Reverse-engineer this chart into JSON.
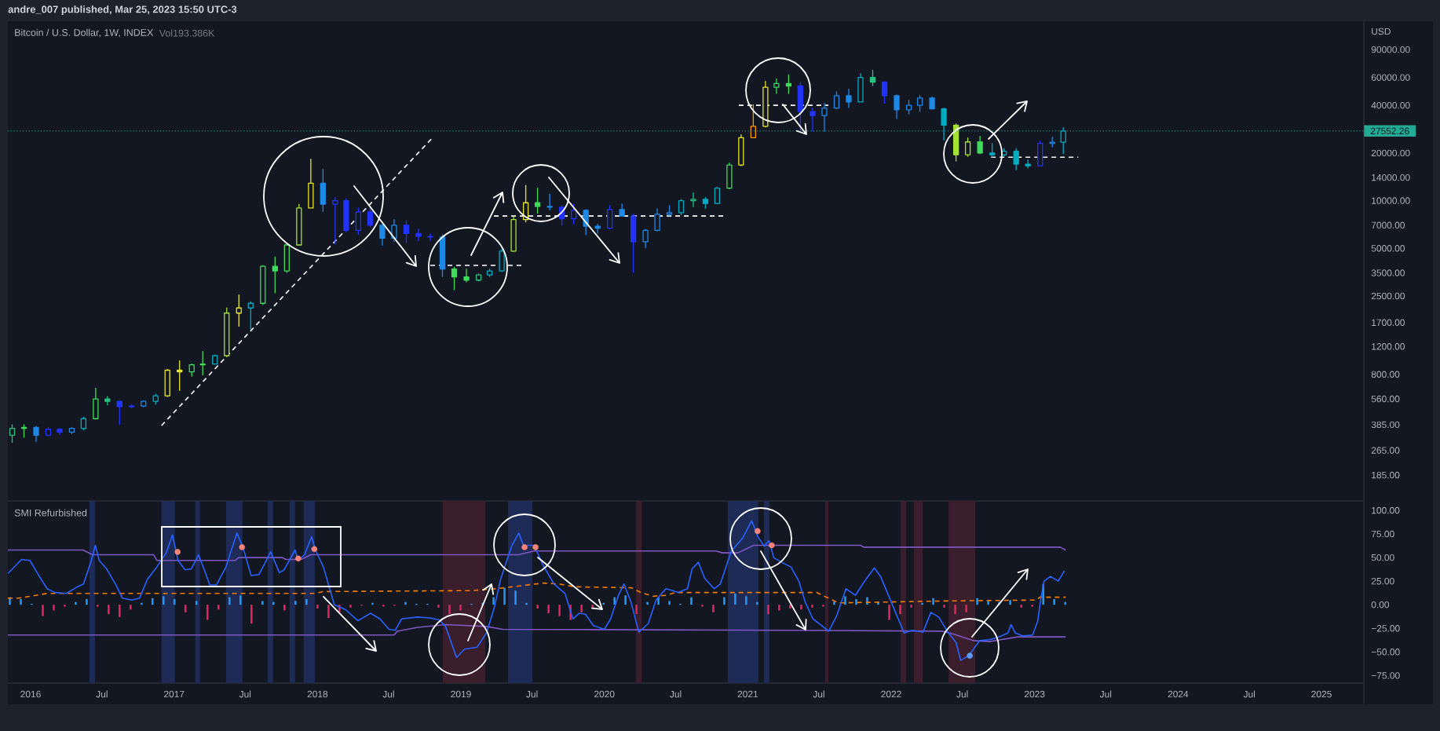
{
  "chart_data": [
    {
      "type": "candlestick",
      "title": "Bitcoin / U.S. Dollar, 1W, INDEX",
      "ylabel": "USD",
      "annotations": [
        "andre_007 published, Mar 25, 2023 15:50 UTC-3",
        "Vol193.386K"
      ],
      "x": [
        "2015-11-15",
        "2015-12-15",
        "2016-01-15",
        "2016-02-15",
        "2016-03-15",
        "2016-04-15",
        "2016-05-15",
        "2016-06-15",
        "2016-07-15",
        "2016-08-15",
        "2016-09-15",
        "2016-10-15",
        "2016-11-15",
        "2016-12-15",
        "2017-01-15",
        "2017-02-15",
        "2017-03-15",
        "2017-04-15",
        "2017-05-15",
        "2017-06-15",
        "2017-07-15",
        "2017-08-15",
        "2017-09-15",
        "2017-10-15",
        "2017-11-15",
        "2017-12-15",
        "2018-01-15",
        "2018-02-15",
        "2018-03-15",
        "2018-04-15",
        "2018-05-15",
        "2018-06-15",
        "2018-07-15",
        "2018-08-15",
        "2018-09-15",
        "2018-10-15",
        "2018-11-15",
        "2018-12-15",
        "2019-01-15",
        "2019-02-15",
        "2019-03-15",
        "2019-04-15",
        "2019-05-15",
        "2019-06-15",
        "2019-07-15",
        "2019-08-15",
        "2019-09-15",
        "2019-10-15",
        "2019-11-15",
        "2019-12-15",
        "2020-01-15",
        "2020-02-15",
        "2020-03-15",
        "2020-04-15",
        "2020-05-15",
        "2020-06-15",
        "2020-07-15",
        "2020-08-15",
        "2020-09-15",
        "2020-10-15",
        "2020-11-15",
        "2020-12-15",
        "2021-01-15",
        "2021-02-15",
        "2021-03-15",
        "2021-04-15",
        "2021-05-15",
        "2021-06-15",
        "2021-07-15",
        "2021-08-15",
        "2021-09-15",
        "2021-10-15",
        "2021-11-15",
        "2021-12-15",
        "2022-01-15",
        "2022-02-15",
        "2022-03-15",
        "2022-04-15",
        "2022-05-15",
        "2022-06-15",
        "2022-07-15",
        "2022-08-15",
        "2022-09-15",
        "2022-10-15",
        "2022-11-15",
        "2022-12-15",
        "2023-01-15",
        "2023-02-15",
        "2023-03-15"
      ],
      "ohlc": [
        [
          330,
          385,
          296,
          365
        ],
        [
          365,
          385,
          318,
          370
        ],
        [
          370,
          375,
          300,
          330
        ],
        [
          330,
          370,
          325,
          360
        ],
        [
          360,
          365,
          330,
          345
        ],
        [
          345,
          370,
          335,
          365
        ],
        [
          365,
          430,
          355,
          420
        ],
        [
          420,
          655,
          415,
          560
        ],
        [
          560,
          580,
          510,
          540
        ],
        [
          540,
          545,
          385,
          500
        ],
        [
          500,
          515,
          490,
          505
        ],
        [
          505,
          545,
          495,
          540
        ],
        [
          540,
          600,
          515,
          585
        ],
        [
          585,
          860,
          575,
          850
        ],
        [
          850,
          975,
          630,
          830
        ],
        [
          830,
          930,
          775,
          920
        ],
        [
          920,
          1115,
          790,
          930
        ],
        [
          930,
          1060,
          920,
          1050
        ],
        [
          1050,
          2100,
          1030,
          1950
        ],
        [
          1950,
          2540,
          1600,
          2100
        ],
        [
          2100,
          2300,
          1540,
          2250
        ],
        [
          2250,
          3900,
          2200,
          3850
        ],
        [
          3850,
          4400,
          2600,
          3600
        ],
        [
          3600,
          5300,
          3500,
          5250
        ],
        [
          5250,
          9500,
          5200,
          9000
        ],
        [
          9000,
          18300,
          9000,
          12900
        ],
        [
          12900,
          15800,
          8500,
          9500
        ],
        [
          9500,
          10500,
          5300,
          10000
        ],
        [
          10000,
          10300,
          6300,
          6500
        ],
        [
          6500,
          9000,
          6100,
          8500
        ],
        [
          8500,
          9100,
          6800,
          7000
        ],
        [
          7000,
          7100,
          5200,
          5800
        ],
        [
          5800,
          7600,
          5500,
          7000
        ],
        [
          7000,
          7500,
          5400,
          6200
        ],
        [
          6200,
          6600,
          5550,
          5950
        ],
        [
          5950,
          6200,
          5550,
          5900
        ],
        [
          5900,
          6100,
          3300,
          3700
        ],
        [
          3700,
          3800,
          2720,
          3300
        ],
        [
          3300,
          3700,
          3050,
          3150
        ],
        [
          3150,
          3450,
          3100,
          3400
        ],
        [
          3400,
          3700,
          3300,
          3600
        ],
        [
          3600,
          4950,
          3550,
          4800
        ],
        [
          4800,
          7950,
          4750,
          7600
        ],
        [
          7600,
          12500,
          7300,
          9700
        ],
        [
          9700,
          12000,
          8300,
          9200
        ],
        [
          9200,
          11000,
          8700,
          9100
        ],
        [
          9100,
          9300,
          6950,
          7700
        ],
        [
          7700,
          9500,
          7100,
          8700
        ],
        [
          8700,
          8800,
          6050,
          6900
        ],
        [
          6900,
          7100,
          6200,
          6700
        ],
        [
          6700,
          9300,
          6600,
          8800
        ],
        [
          8800,
          9550,
          7950,
          8000
        ],
        [
          8000,
          8200,
          3500,
          5500
        ],
        [
          5500,
          6600,
          5000,
          6500
        ],
        [
          6500,
          8900,
          6400,
          8200
        ],
        [
          8200,
          9300,
          8000,
          8400
        ],
        [
          8400,
          10200,
          8100,
          10000
        ],
        [
          10000,
          11200,
          9100,
          10200
        ],
        [
          10200,
          10500,
          8900,
          9600
        ],
        [
          9600,
          12200,
          9500,
          12000
        ],
        [
          12000,
          17300,
          11800,
          16800
        ],
        [
          16800,
          26100,
          16500,
          25000
        ],
        [
          25000,
          40300,
          25000,
          29500
        ],
        [
          29500,
          56700,
          29000,
          52000
        ],
        [
          52000,
          58900,
          47300,
          55000
        ],
        [
          55000,
          62200,
          47300,
          53000
        ],
        [
          53000,
          56000,
          27300,
          36500
        ],
        [
          36500,
          38500,
          27300,
          34500
        ],
        [
          34500,
          41200,
          27300,
          38500
        ],
        [
          38500,
          48700,
          38000,
          46000
        ],
        [
          46000,
          50600,
          38500,
          42000
        ],
        [
          42000,
          63500,
          42000,
          60000
        ],
        [
          60000,
          66600,
          53000,
          56000
        ],
        [
          56000,
          56500,
          41000,
          46000
        ],
        [
          46000,
          46500,
          32800,
          37500
        ],
        [
          37500,
          43000,
          35000,
          40000
        ],
        [
          40000,
          46200,
          36500,
          44500
        ],
        [
          44500,
          45200,
          37600,
          38000
        ],
        [
          38000,
          38500,
          24000,
          30000
        ],
        [
          30000,
          30500,
          17700,
          19500
        ],
        [
          19500,
          24900,
          18900,
          23500
        ],
        [
          23500,
          25500,
          19700,
          20000
        ],
        [
          20000,
          23000,
          18700,
          19500
        ],
        [
          19500,
          21300,
          19000,
          20500
        ],
        [
          20500,
          21300,
          15600,
          17000
        ],
        [
          17000,
          18100,
          16000,
          16600
        ],
        [
          16600,
          23800,
          16500,
          23000
        ],
        [
          23000,
          25200,
          21700,
          23400
        ],
        [
          23400,
          28900,
          19700,
          27552.26
        ]
      ],
      "colors": [
        "#26c281",
        "#3ddc5a",
        "#1e88e5",
        "#2233ff",
        "#2233ff",
        "#1e88e5",
        "#00acc1",
        "#3ddc5a",
        "#26c281",
        "#2233ff",
        "#2233ff",
        "#1e88e5",
        "#00acc1",
        "#e5e52a",
        "#e5e52a",
        "#3ddc5a",
        "#3ddc5a",
        "#00acc1",
        "#a5e034",
        "#e5e52a",
        "#00acc1",
        "#3ddc5a",
        "#3ddc5a",
        "#3ddc5a",
        "#a5e034",
        "#e5e52a",
        "#1e88e5",
        "#2233ff",
        "#2233ff",
        "#2233ff",
        "#2233ff",
        "#1e88e5",
        "#1e88e5",
        "#2233ff",
        "#2233ff",
        "#2233ff",
        "#1e88e5",
        "#3ddc5a",
        "#3ddc5a",
        "#26c281",
        "#00acc1",
        "#00acc1",
        "#a5e034",
        "#e5e52a",
        "#3ddc5a",
        "#1e88e5",
        "#2233ff",
        "#2233ff",
        "#1e88e5",
        "#1e88e5",
        "#2233ff",
        "#1e88e5",
        "#2233ff",
        "#1e88e5",
        "#1e88e5",
        "#1e88e5",
        "#00acc1",
        "#26c281",
        "#00acc1",
        "#00acc1",
        "#3ddc5a",
        "#e5e52a",
        "#ff9800",
        "#e5e52a",
        "#3ddc5a",
        "#3ddc5a",
        "#2233ff",
        "#2233ff",
        "#1e88e5",
        "#1e88e5",
        "#1e88e5",
        "#00acc1",
        "#26c281",
        "#2233ff",
        "#1e88e5",
        "#1e88e5",
        "#1e88e5",
        "#1e88e5",
        "#00acc1",
        "#a5e034",
        "#a5e034",
        "#3ddc5a",
        "#00acc1",
        "#00acc1",
        "#00acc1",
        "#00acc1",
        "#2233ff",
        "#1e88e5",
        "#00acc1"
      ],
      "log": true,
      "xlim": [
        "2015-11-04",
        "2025-04-19"
      ],
      "ylim": [
        127,
        136000
      ],
      "yticks": [
        {
          "value": 185,
          "label": "185.00"
        },
        {
          "value": 265,
          "label": "265.00"
        },
        {
          "value": 385,
          "label": "385.00"
        },
        {
          "value": 560,
          "label": "560.00"
        },
        {
          "value": 800,
          "label": "800.00"
        },
        {
          "value": 1200,
          "label": "1200.00"
        },
        {
          "value": 1700,
          "label": "1700.00"
        },
        {
          "value": 2500,
          "label": "2500.00"
        },
        {
          "value": 3500,
          "label": "3500.00"
        },
        {
          "value": 5000,
          "label": "5000.00"
        },
        {
          "value": 7000,
          "label": "7000.00"
        },
        {
          "value": 10000,
          "label": "10000.00"
        },
        {
          "value": 14000,
          "label": "14000.00"
        },
        {
          "value": 20000,
          "label": "20000.00"
        },
        {
          "value": 40000,
          "label": "40000.00"
        },
        {
          "value": 60000,
          "label": "60000.00"
        },
        {
          "value": 90000,
          "label": "90000.00"
        }
      ],
      "tick_labels": "y",
      "ref_lines": [
        {
          "axis": "y",
          "value": 27552.26,
          "label": "27552.26",
          "color": "#22ab94",
          "line_style": "dotted"
        }
      ],
      "series": [
        {
          "type": "line",
          "x": [
            "2016-11-30",
            "2018-10-21"
          ],
          "values": [
            380,
            25000
          ],
          "color": "#ffffff",
          "line_style": "dashed"
        },
        {
          "type": "line",
          "x": [
            "2018-10-15",
            "2019-06-12"
          ],
          "values": [
            3900,
            3900
          ],
          "color": "#ffffff",
          "line_style": "dashed"
        },
        {
          "type": "line",
          "x": [
            "2019-03-26",
            "2020-11-03"
          ],
          "values": [
            8000,
            8000
          ],
          "color": "#ffffff",
          "line_style": "dashed"
        },
        {
          "type": "line",
          "x": [
            "2020-12-09",
            "2021-07-25"
          ],
          "values": [
            40000,
            40000
          ],
          "color": "#ffffff",
          "line_style": "dashed"
        },
        {
          "type": "line",
          "x": [
            "2022-09-12",
            "2023-04-22"
          ],
          "values": [
            18800,
            18800
          ],
          "color": "#ffffff",
          "line_style": "dashed"
        }
      ]
    },
    {
      "type": "line",
      "title": "SMI Refurbished",
      "xlim": [
        "2015-11-04",
        "2025-04-19"
      ],
      "xticks": [
        "2016",
        {
          "value": "2016-07-01",
          "label": "Jul"
        },
        "2017",
        {
          "value": "2017-07-01",
          "label": "Jul"
        },
        "2018",
        {
          "value": "2018-07-01",
          "label": "Jul"
        },
        "2019",
        {
          "value": "2019-07-01",
          "label": "Jul"
        },
        "2020",
        {
          "value": "2020-07-01",
          "label": "Jul"
        },
        "2021",
        {
          "value": "2021-07-01",
          "label": "Jul"
        },
        "2022",
        {
          "value": "2022-07-01",
          "label": "Jul"
        },
        "2023",
        {
          "value": "2023-07-01",
          "label": "Jul"
        },
        "2024",
        {
          "value": "2024-07-01",
          "label": "Jul"
        },
        "2025"
      ],
      "ylim": [
        -83,
        110
      ],
      "yticks": [
        {
          "value": -75,
          "label": "−75.00"
        },
        {
          "value": -50,
          "label": "−50.00"
        },
        {
          "value": -25,
          "label": "−25.00"
        },
        {
          "value": 0,
          "label": "0.00"
        },
        {
          "value": 25,
          "label": "25.00"
        },
        {
          "value": 50,
          "label": "50.00"
        },
        {
          "value": 75,
          "label": "75.00"
        },
        {
          "value": 100,
          "label": "100.00"
        }
      ],
      "bands": [
        {
          "axis": "x",
          "from": "2016-05-30",
          "to": "2016-06-13",
          "color": "#1e2b57"
        },
        {
          "axis": "x",
          "from": "2016-11-30",
          "to": "2017-01-03",
          "color": "#1e2b57"
        },
        {
          "axis": "x",
          "from": "2017-02-24",
          "to": "2017-03-08",
          "color": "#1e2b57"
        },
        {
          "axis": "x",
          "from": "2017-05-13",
          "to": "2017-06-24",
          "color": "#1e2b57"
        },
        {
          "axis": "x",
          "from": "2017-08-27",
          "to": "2017-09-10",
          "color": "#1e2b57"
        },
        {
          "axis": "x",
          "from": "2017-10-22",
          "to": "2017-11-05",
          "color": "#1e2b57"
        },
        {
          "axis": "x",
          "from": "2017-11-27",
          "to": "2017-12-25",
          "color": "#1e2b57"
        },
        {
          "axis": "x",
          "from": "2018-11-16",
          "to": "2019-03-04",
          "color": "#3b1e2b"
        },
        {
          "axis": "x",
          "from": "2019-05-01",
          "to": "2019-07-02",
          "color": "#1e2b57"
        },
        {
          "axis": "x",
          "from": "2020-03-22",
          "to": "2020-04-05",
          "color": "#3b1e2b"
        },
        {
          "axis": "x",
          "from": "2020-11-11",
          "to": "2021-01-28",
          "color": "#1e2b57"
        },
        {
          "axis": "x",
          "from": "2021-02-11",
          "to": "2021-02-25",
          "color": "#1e2b57"
        },
        {
          "axis": "x",
          "from": "2021-07-17",
          "to": "2021-07-25",
          "color": "#3b1e2b"
        },
        {
          "axis": "x",
          "from": "2022-01-25",
          "to": "2022-02-08",
          "color": "#3b1e2b"
        },
        {
          "axis": "x",
          "from": "2022-02-28",
          "to": "2022-03-22",
          "color": "#3b1e2b"
        },
        {
          "axis": "x",
          "from": "2022-05-27",
          "to": "2022-08-03",
          "color": "#3b1e2b"
        }
      ],
      "series": [
        {
          "type": "bar",
          "x": [
            "2015-11-09",
            "2015-12-07",
            "2016-01-04",
            "2016-02-01",
            "2016-02-29",
            "2016-03-28",
            "2016-04-25",
            "2016-05-23",
            "2016-06-20",
            "2016-07-18",
            "2016-08-15",
            "2016-09-12",
            "2016-10-10",
            "2016-11-07",
            "2016-12-05",
            "2017-01-02",
            "2017-01-30",
            "2017-02-27",
            "2017-03-27",
            "2017-04-24",
            "2017-05-22",
            "2017-06-19",
            "2017-07-17",
            "2017-08-14",
            "2017-09-11",
            "2017-10-09",
            "2017-11-06",
            "2017-12-04",
            "2018-01-01",
            "2018-01-29",
            "2018-02-26",
            "2018-03-26",
            "2018-04-23",
            "2018-05-21",
            "2018-06-18",
            "2018-07-16",
            "2018-08-13",
            "2018-09-10",
            "2018-10-08",
            "2018-11-05",
            "2018-12-03",
            "2018-12-31",
            "2019-01-28",
            "2019-02-25",
            "2019-03-25",
            "2019-04-22",
            "2019-05-20",
            "2019-06-17",
            "2019-07-15",
            "2019-08-12",
            "2019-09-09",
            "2019-10-07",
            "2019-11-04",
            "2019-12-02",
            "2019-12-30",
            "2020-01-27",
            "2020-02-24",
            "2020-03-23",
            "2020-04-20",
            "2020-05-18",
            "2020-06-15",
            "2020-07-13",
            "2020-08-10",
            "2020-09-07",
            "2020-10-05",
            "2020-11-02",
            "2020-11-30",
            "2020-12-28",
            "2021-01-25",
            "2021-02-22",
            "2021-03-22",
            "2021-04-19",
            "2021-05-17",
            "2021-06-14",
            "2021-07-12",
            "2021-08-09",
            "2021-09-06",
            "2021-10-04",
            "2021-11-01",
            "2021-11-29",
            "2021-12-27",
            "2022-01-24",
            "2022-02-21",
            "2022-03-21",
            "2022-04-18",
            "2022-05-16",
            "2022-06-13",
            "2022-07-11",
            "2022-08-08",
            "2022-09-05",
            "2022-10-03",
            "2022-10-31",
            "2022-11-28",
            "2022-12-26",
            "2023-01-23",
            "2023-02-20",
            "2023-03-20"
          ],
          "values": [
            8,
            6,
            1,
            -12,
            -6,
            -2,
            3,
            6,
            -2,
            -10,
            -13,
            -5,
            2,
            7,
            9,
            6,
            -8,
            4,
            -16,
            -5,
            8,
            10,
            -20,
            4,
            3,
            -6,
            4,
            6,
            -4,
            -14,
            -8,
            -3,
            -1,
            2,
            -2,
            -1,
            3,
            1,
            1,
            -3,
            -10,
            -6,
            1,
            2,
            8,
            18,
            15,
            2,
            -4,
            -9,
            -12,
            -16,
            -8,
            -4,
            2,
            8,
            10,
            -10,
            3,
            8,
            4,
            1,
            8,
            -2,
            -8,
            8,
            12,
            9,
            3,
            -10,
            -6,
            -4,
            -5,
            -3,
            -2,
            4,
            9,
            6,
            8,
            3,
            -16,
            -10,
            -3,
            2,
            7,
            -3,
            -10,
            -8,
            7,
            4,
            3,
            5,
            -3,
            -2,
            22,
            6,
            3
          ],
          "colors": [
            "#2196f3",
            "#2196f3",
            "#2196f3",
            "#e0245e",
            "#e0245e",
            "#e0245e",
            "#2196f3",
            "#2196f3",
            "#e0245e",
            "#e0245e",
            "#e0245e",
            "#e0245e",
            "#2196f3",
            "#2196f3",
            "#2196f3",
            "#2196f3",
            "#e0245e",
            "#2196f3",
            "#e0245e",
            "#e0245e",
            "#2196f3",
            "#2196f3",
            "#e0245e",
            "#2196f3",
            "#2196f3",
            "#e0245e",
            "#2196f3",
            "#2196f3",
            "#e0245e",
            "#e0245e",
            "#e0245e",
            "#e0245e",
            "#e0245e",
            "#2196f3",
            "#e0245e",
            "#e0245e",
            "#2196f3",
            "#2196f3",
            "#2196f3",
            "#e0245e",
            "#e0245e",
            "#e0245e",
            "#2196f3",
            "#2196f3",
            "#2196f3",
            "#2196f3",
            "#2196f3",
            "#2196f3",
            "#e0245e",
            "#e0245e",
            "#e0245e",
            "#e0245e",
            "#e0245e",
            "#e0245e",
            "#2196f3",
            "#2196f3",
            "#2196f3",
            "#e0245e",
            "#2196f3",
            "#2196f3",
            "#2196f3",
            "#2196f3",
            "#2196f3",
            "#e0245e",
            "#e0245e",
            "#2196f3",
            "#2196f3",
            "#2196f3",
            "#2196f3",
            "#e0245e",
            "#e0245e",
            "#e0245e",
            "#e0245e",
            "#e0245e",
            "#e0245e",
            "#2196f3",
            "#2196f3",
            "#2196f3",
            "#2196f3",
            "#2196f3",
            "#e0245e",
            "#e0245e",
            "#e0245e",
            "#2196f3",
            "#2196f3",
            "#e0245e",
            "#e0245e",
            "#e0245e",
            "#2196f3",
            "#2196f3",
            "#2196f3",
            "#2196f3",
            "#e0245e",
            "#e0245e",
            "#2196f3",
            "#2196f3",
            "#2196f3"
          ]
        },
        {
          "type": "line",
          "x": [
            "2015-11-04",
            "2016-05-14",
            "2016-06-07",
            "2016-11-10",
            "2016-11-18",
            "2017-06-06",
            "2017-06-14",
            "2017-10-04",
            "2017-10-12",
            "2017-11-21",
            "2017-12-15",
            "2019-05-27",
            "2019-07-06",
            "2020-10-12",
            "2020-10-28",
            "2020-12-07",
            "2021-01-16",
            "2021-10-15",
            "2021-10-23",
            "2023-03-07",
            "2023-03-21"
          ],
          "values": [
            58,
            58,
            53,
            53,
            47,
            47,
            50,
            50,
            48,
            48,
            53,
            53,
            57,
            57,
            55,
            55,
            63,
            63,
            61,
            61,
            58
          ],
          "color": "#7e57c2"
        },
        {
          "type": "line",
          "x": [
            "2015-11-04",
            "2018-07-15",
            "2018-07-23",
            "2018-09-13",
            "2018-11-24",
            "2019-03-08",
            "2019-04-17",
            "2021-04-06",
            "2022-05-11",
            "2022-05-31",
            "2022-07-30",
            "2022-09-08",
            "2022-11-19",
            "2023-03-21"
          ],
          "values": [
            -32,
            -32,
            -28,
            -24,
            -21,
            -23,
            -26,
            -27,
            -28,
            -30,
            -38,
            -39,
            -34,
            -34
          ],
          "color": "#7e57c2"
        },
        {
          "type": "line",
          "x": [
            "2015-11-04",
            "2015-12-02",
            "2016-02-12",
            "2017-12-23",
            "2018-01-16",
            "2019-01-27",
            "2019-04-01",
            "2019-07-30",
            "2019-09-08",
            "2019-10-18",
            "2020-03-10",
            "2020-04-03",
            "2020-05-05",
            "2020-06-06",
            "2020-06-30",
            "2021-06-25",
            "2021-08-20",
            "2022-05-11",
            "2023-01-06",
            "2023-01-14",
            "2023-03-21"
          ],
          "values": [
            7,
            7,
            12,
            12,
            14,
            15,
            17,
            23,
            22,
            19,
            18,
            13,
            9,
            10,
            13,
            13,
            2,
            4,
            5,
            8,
            8
          ],
          "color": "#f57c00",
          "line_style": "dashed"
        },
        {
          "type": "line",
          "x": [
            "2015-11-04",
            "2015-12-09",
            "2015-12-30",
            "2016-01-19",
            "2016-02-12",
            "2016-03-03",
            "2016-04-01",
            "2016-04-25",
            "2016-05-15",
            "2016-06-04",
            "2016-06-14",
            "2016-06-24",
            "2016-07-13",
            "2016-08-07",
            "2016-08-22",
            "2016-09-15",
            "2016-10-05",
            "2016-10-25",
            "2016-11-18",
            "2016-12-12",
            "2016-12-28",
            "2017-01-11",
            "2017-01-29",
            "2017-02-14",
            "2017-03-04",
            "2017-03-18",
            "2017-04-02",
            "2017-04-19",
            "2017-05-13",
            "2017-06-10",
            "2017-06-26",
            "2017-07-16",
            "2017-08-05",
            "2017-09-04",
            "2017-09-26",
            "2017-10-08",
            "2017-11-05",
            "2017-11-13",
            "2017-11-29",
            "2017-12-17",
            "2017-12-27",
            "2018-01-16",
            "2018-02-01",
            "2018-02-13",
            "2018-03-13",
            "2018-04-14",
            "2018-05-16",
            "2018-06-09",
            "2018-07-02",
            "2018-07-18",
            "2018-08-03",
            "2018-09-12",
            "2018-10-14",
            "2018-11-07",
            "2018-11-23",
            "2018-12-21",
            "2019-01-10",
            "2019-02-11",
            "2019-03-07",
            "2019-03-27",
            "2019-04-12",
            "2019-05-10",
            "2019-05-28",
            "2019-06-10",
            "2019-06-23",
            "2019-07-05",
            "2019-07-17",
            "2019-07-29",
            "2019-08-26",
            "2019-09-23",
            "2019-10-13",
            "2019-10-29",
            "2019-11-14",
            "2019-12-04",
            "2020-01-01",
            "2020-01-17",
            "2020-02-06",
            "2020-02-20",
            "2020-03-09",
            "2020-03-29",
            "2020-04-22",
            "2020-05-12",
            "2020-06-06",
            "2020-07-08",
            "2020-07-31",
            "2020-08-12",
            "2020-08-28",
            "2020-09-13",
            "2020-10-07",
            "2020-10-23",
            "2020-11-20",
            "2020-12-18",
            "2021-01-11",
            "2021-01-27",
            "2021-02-12",
            "2021-02-24",
            "2021-03-08",
            "2021-03-28",
            "2021-04-21",
            "2021-05-11",
            "2021-05-27",
            "2021-06-16",
            "2021-07-02",
            "2021-07-26",
            "2021-08-15",
            "2021-09-08",
            "2021-10-02",
            "2021-10-22",
            "2021-11-19",
            "2021-12-05",
            "2022-01-02",
            "2022-02-03",
            "2022-02-23",
            "2022-03-23",
            "2022-04-12",
            "2022-05-02",
            "2022-05-22",
            "2022-06-15",
            "2022-06-27",
            "2022-07-17",
            "2022-08-14",
            "2022-09-07",
            "2022-09-27",
            "2022-10-25",
            "2022-11-02",
            "2022-11-13",
            "2022-12-03",
            "2022-12-27",
            "2023-01-09",
            "2023-01-17",
            "2023-01-25",
            "2023-02-10",
            "2023-03-02",
            "2023-03-18"
          ],
          "values": [
            33,
            48,
            47,
            33,
            17,
            13,
            12,
            18,
            22,
            47,
            63,
            47,
            38,
            20,
            7,
            5,
            7,
            27,
            40,
            55,
            74,
            47,
            37,
            38,
            53,
            38,
            21,
            21,
            40,
            76,
            60,
            31,
            32,
            56,
            34,
            37,
            58,
            47,
            53,
            72,
            58,
            40,
            17,
            0,
            -5,
            -17,
            -9,
            -15,
            -26,
            -27,
            -15,
            -13,
            -14,
            -16,
            -23,
            -56,
            -47,
            -45,
            -30,
            -3,
            27,
            62,
            76,
            62,
            63,
            63,
            53,
            42,
            22,
            12,
            -15,
            -9,
            -10,
            -22,
            -26,
            -15,
            10,
            22,
            3,
            -29,
            -20,
            5,
            17,
            13,
            17,
            38,
            45,
            28,
            17,
            22,
            57,
            70,
            89,
            72,
            62,
            68,
            50,
            45,
            40,
            25,
            3,
            -15,
            -20,
            -28,
            -12,
            17,
            10,
            23,
            39,
            30,
            2,
            -30,
            -27,
            -29,
            -8,
            -13,
            -27,
            -40,
            -59,
            -54,
            -38,
            -37,
            -35,
            -30,
            -21,
            -30,
            -33,
            -32,
            -17,
            7,
            25,
            30,
            25,
            36
          ],
          "color": "#2962ff"
        },
        {
          "type": "scatter",
          "x": [
            "2017-01-10",
            "2017-06-23",
            "2017-11-13",
            "2017-12-24",
            "2019-06-12",
            "2019-07-10",
            "2021-01-26",
            "2021-03-03",
            "2022-07-20"
          ],
          "values": [
            56,
            61,
            49,
            59,
            61,
            61,
            78,
            63,
            -54
          ],
          "colors": [
            "#f7837a",
            "#f7837a",
            "#f7837a",
            "#f7837a",
            "#f7837a",
            "#f7837a",
            "#f7837a",
            "#f7837a",
            "#5b9cf6"
          ],
          "marker": "circle"
        }
      ]
    }
  ]
}
